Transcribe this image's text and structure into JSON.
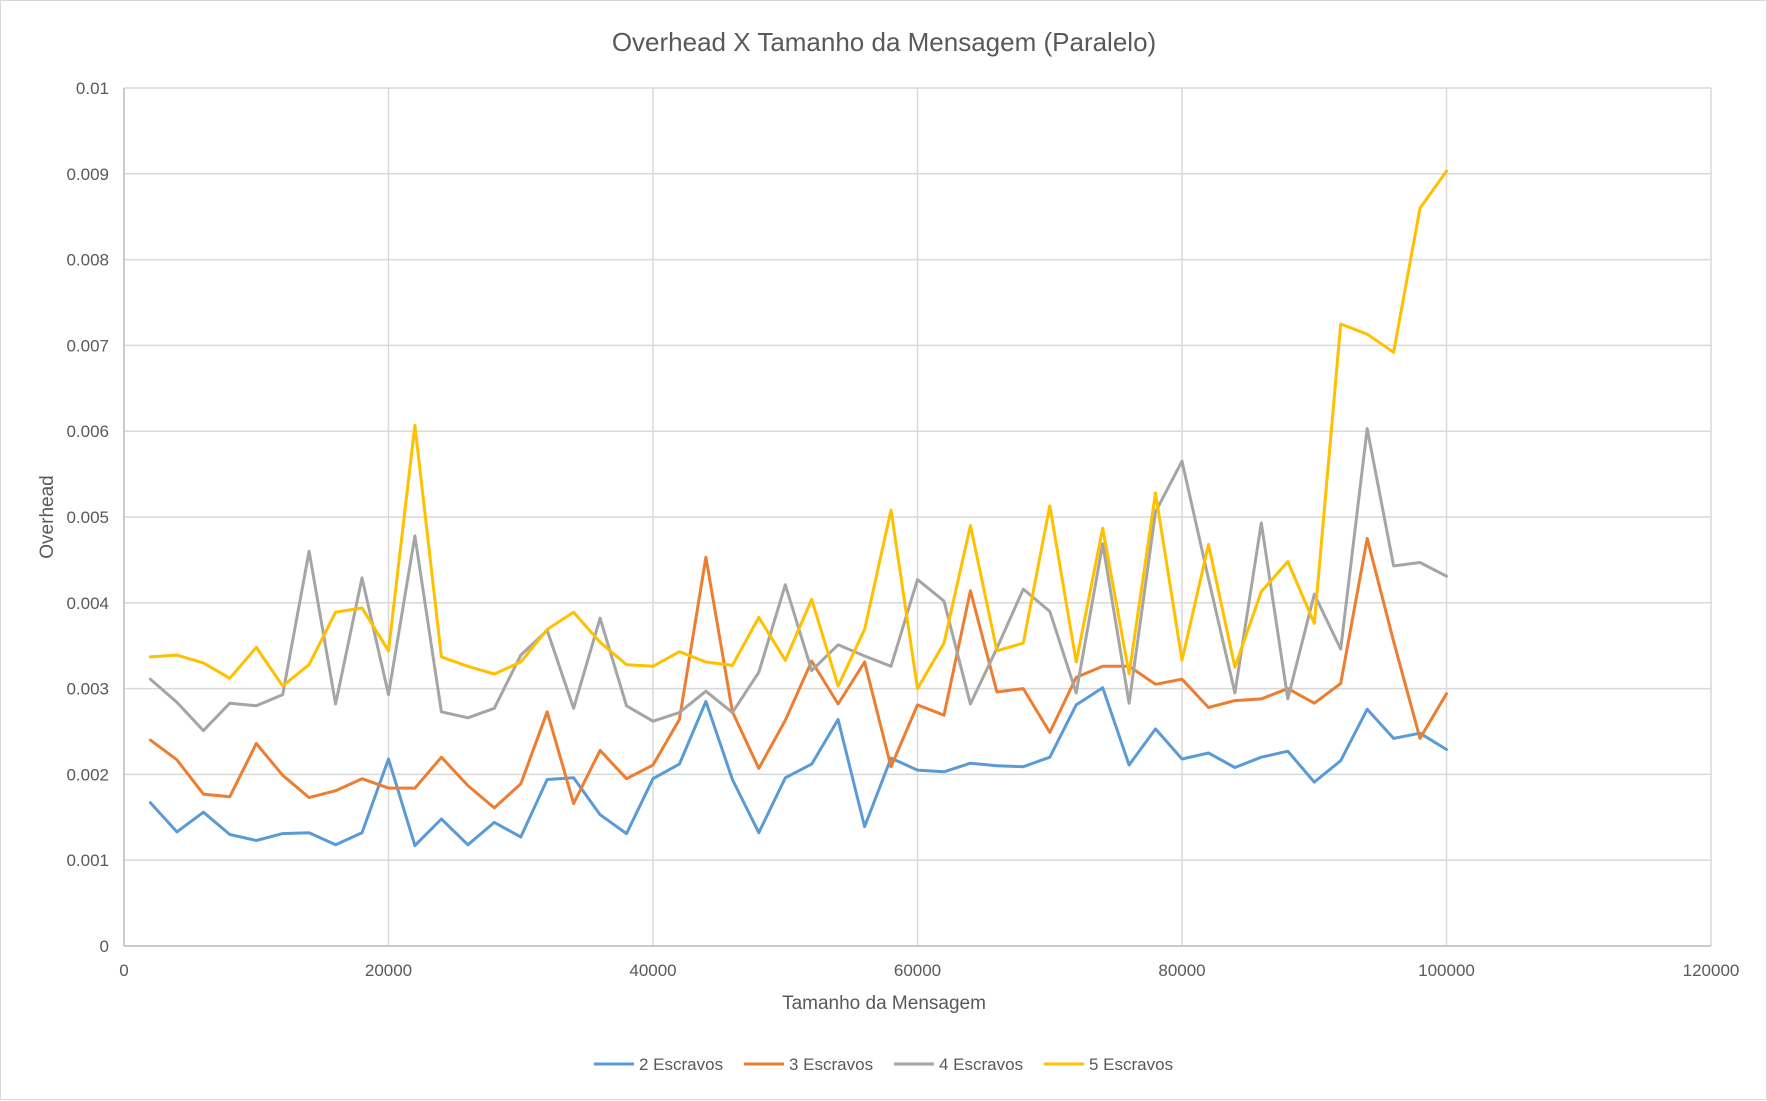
{
  "chart_data": {
    "type": "line",
    "title": "Overhead X Tamanho da Mensagem (Paralelo)",
    "xlabel": "Tamanho da Mensagem",
    "ylabel": "Overhead",
    "xlim": [
      0,
      120000
    ],
    "ylim": [
      0,
      0.01
    ],
    "x_ticks": [
      "0",
      "20000",
      "40000",
      "60000",
      "80000",
      "100000",
      "120000"
    ],
    "y_ticks": [
      "0",
      "0.001",
      "0.002",
      "0.003",
      "0.004",
      "0.005",
      "0.006",
      "0.007",
      "0.008",
      "0.009",
      "0.01"
    ],
    "grid": true,
    "legend_position": "bottom",
    "x": [
      2000,
      4000,
      6000,
      8000,
      10000,
      12000,
      14000,
      16000,
      18000,
      20000,
      22000,
      24000,
      26000,
      28000,
      30000,
      32000,
      34000,
      36000,
      38000,
      40000,
      42000,
      44000,
      46000,
      48000,
      50000,
      52000,
      54000,
      56000,
      58000,
      60000,
      62000,
      64000,
      66000,
      68000,
      70000,
      72000,
      74000,
      76000,
      78000,
      80000,
      82000,
      84000,
      86000,
      88000,
      90000,
      92000,
      94000,
      96000,
      98000,
      100000
    ],
    "series": [
      {
        "name": "2 Escravos",
        "color": "#5b9bd5",
        "values": [
          0.00167,
          0.00133,
          0.00156,
          0.0013,
          0.00123,
          0.00131,
          0.00132,
          0.00118,
          0.00132,
          0.00218,
          0.00117,
          0.00148,
          0.00118,
          0.00144,
          0.00127,
          0.00194,
          0.00196,
          0.00153,
          0.00131,
          0.00195,
          0.00212,
          0.00285,
          0.00194,
          0.00132,
          0.00196,
          0.00212,
          0.00264,
          0.00139,
          0.00219,
          0.00205,
          0.00203,
          0.00213,
          0.0021,
          0.00209,
          0.0022,
          0.00281,
          0.00301,
          0.00211,
          0.00253,
          0.00218,
          0.00225,
          0.00208,
          0.0022,
          0.00227,
          0.00191,
          0.00216,
          0.00276,
          0.00242,
          0.00248,
          0.00229
        ]
      },
      {
        "name": "3 Escravos",
        "color": "#ed7d31",
        "values": [
          0.0024,
          0.00217,
          0.00177,
          0.00174,
          0.00236,
          0.00199,
          0.00173,
          0.00181,
          0.00195,
          0.00184,
          0.00184,
          0.0022,
          0.00187,
          0.00161,
          0.00189,
          0.00273,
          0.00166,
          0.00228,
          0.00195,
          0.00211,
          0.00264,
          0.00453,
          0.00273,
          0.00207,
          0.00263,
          0.00332,
          0.00282,
          0.00331,
          0.00209,
          0.00281,
          0.00269,
          0.00414,
          0.00296,
          0.003,
          0.00249,
          0.00313,
          0.00326,
          0.00326,
          0.00305,
          0.00311,
          0.00278,
          0.00286,
          0.00288,
          0.003,
          0.00283,
          0.00306,
          0.00475,
          0.00355,
          0.00242,
          0.00294
        ]
      },
      {
        "name": "4 Escravos",
        "color": "#a5a5a5",
        "values": [
          0.00311,
          0.00284,
          0.00251,
          0.00283,
          0.0028,
          0.00293,
          0.0046,
          0.00282,
          0.00429,
          0.00293,
          0.00478,
          0.00273,
          0.00266,
          0.00277,
          0.00339,
          0.00368,
          0.00277,
          0.00382,
          0.0028,
          0.00262,
          0.00272,
          0.00297,
          0.00272,
          0.00319,
          0.00421,
          0.00321,
          0.00351,
          0.00338,
          0.00326,
          0.00427,
          0.00402,
          0.00282,
          0.00347,
          0.00416,
          0.0039,
          0.00295,
          0.00469,
          0.00283,
          0.00506,
          0.00565,
          0.00428,
          0.00295,
          0.00493,
          0.00288,
          0.0041,
          0.00346,
          0.00603,
          0.00443,
          0.00447,
          0.00431
        ]
      },
      {
        "name": "5 Escravos",
        "color": "#ffc000",
        "values": [
          0.00337,
          0.00339,
          0.0033,
          0.00312,
          0.00348,
          0.00303,
          0.00328,
          0.00389,
          0.00394,
          0.00344,
          0.00607,
          0.00337,
          0.00326,
          0.00317,
          0.00331,
          0.00369,
          0.00389,
          0.00354,
          0.00328,
          0.00326,
          0.00343,
          0.00331,
          0.00327,
          0.00383,
          0.00333,
          0.00404,
          0.00303,
          0.00369,
          0.00508,
          0.003,
          0.00353,
          0.0049,
          0.00344,
          0.00353,
          0.00513,
          0.00331,
          0.00487,
          0.00317,
          0.00528,
          0.00333,
          0.00468,
          0.00325,
          0.00413,
          0.00448,
          0.00376,
          0.00725,
          0.00713,
          0.00692,
          0.0086,
          0.00903
        ]
      }
    ]
  }
}
